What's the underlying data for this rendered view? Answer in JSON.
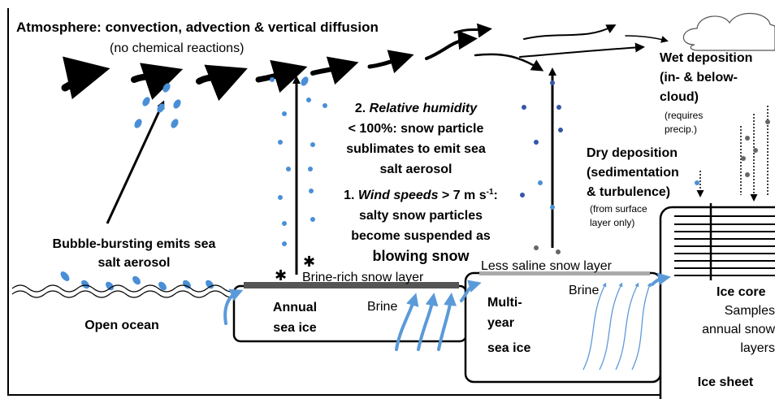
{
  "title": "Atmosphere: convection, advection & vertical diffusion",
  "subtitle": "(no chemical reactions)",
  "step2": {
    "number": "2.",
    "emphasis": "Relative humidity",
    "lines": [
      "< 100%: snow particle",
      "sublimates to emit sea",
      "salt aerosol"
    ]
  },
  "step1": {
    "number": "1.",
    "emphasis": "Wind speeds",
    "rest": "> 7 m s",
    "superscript": "-1",
    "colon": ":",
    "lines": [
      "salty snow particles",
      "become suspended as",
      "blowing snow"
    ]
  },
  "bubble": [
    "Bubble-bursting emits sea",
    "salt aerosol"
  ],
  "brine_rich": "Brine-rich snow layer",
  "open_ocean": "Open ocean",
  "annual": [
    "Annual",
    "sea ice"
  ],
  "brine": [
    "Brine",
    "Brine"
  ],
  "less_saline": "Less saline snow layer",
  "multi_year": [
    "Multi-",
    "year",
    "sea ice"
  ],
  "wet": {
    "title": [
      "Wet deposition",
      "(in- & below-",
      "cloud)"
    ],
    "note": [
      "(requires",
      "precip.)"
    ]
  },
  "dry": {
    "title": [
      "Dry deposition",
      "(sedimentation",
      "& turbulence)"
    ],
    "note": [
      "(from surface",
      "layer only)"
    ]
  },
  "ice_core": {
    "title": "Ice core",
    "lines": [
      "Samples",
      "annual snow",
      "layers"
    ]
  },
  "ice_sheet": "Ice sheet"
}
